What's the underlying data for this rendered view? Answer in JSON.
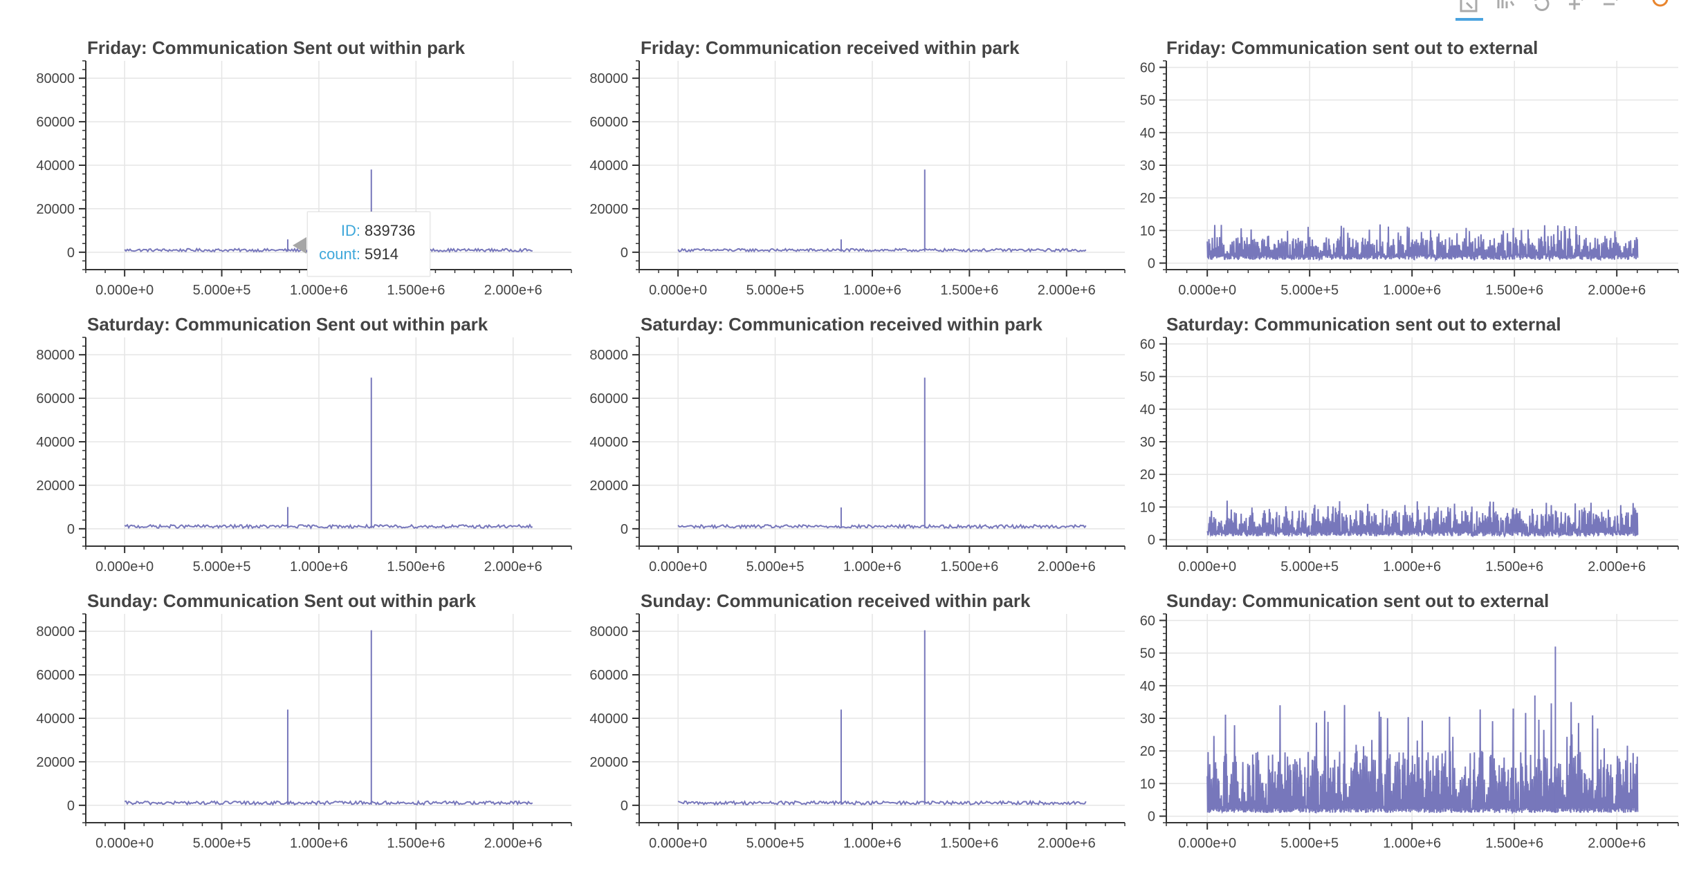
{
  "toolbar": {
    "tools": [
      {
        "icon": "box-zoom-icon",
        "active": true
      },
      {
        "icon": "wheel-zoom-icon",
        "active": false
      },
      {
        "icon": "reset-icon",
        "active": false
      },
      {
        "icon": "zoom-in-icon",
        "active": false
      },
      {
        "icon": "zoom-out-icon",
        "active": false
      },
      {
        "icon": "bokeh-logo-icon",
        "active": false
      }
    ],
    "accent_color": "#4aa3df"
  },
  "line_color": "#7777bb",
  "tooltip": {
    "id_key": "ID:",
    "id_value": "839736",
    "count_key": "count:",
    "count_value": "5914"
  },
  "chart_data": [
    {
      "type": "line",
      "title": "Friday: Communication Sent out within park",
      "xlabel": "",
      "ylabel": "",
      "xlim": [
        -200000,
        2300000
      ],
      "ylim": [
        -8000,
        88000
      ],
      "x_ticks": [
        "0.000e+0",
        "5.000e+5",
        "1.000e+6",
        "1.500e+6",
        "2.000e+6"
      ],
      "y_ticks": [
        "0",
        "20000",
        "40000",
        "60000",
        "80000"
      ],
      "series": [
        {
          "x_range": [
            0,
            2100000
          ],
          "baseline": [
            300,
            1600
          ],
          "spikes": [
            {
              "x": 839736,
              "y": 5914
            },
            {
              "x": 1270000,
              "y": 38000
            }
          ]
        }
      ]
    },
    {
      "type": "line",
      "title": "Friday: Communication received within park",
      "xlabel": "",
      "ylabel": "",
      "xlim": [
        -200000,
        2300000
      ],
      "ylim": [
        -8000,
        88000
      ],
      "x_ticks": [
        "0.000e+0",
        "5.000e+5",
        "1.000e+6",
        "1.500e+6",
        "2.000e+6"
      ],
      "y_ticks": [
        "0",
        "20000",
        "40000",
        "60000",
        "80000"
      ],
      "series": [
        {
          "x_range": [
            0,
            2100000
          ],
          "baseline": [
            300,
            1600
          ],
          "spikes": [
            {
              "x": 839736,
              "y": 5900
            },
            {
              "x": 1270000,
              "y": 38000
            }
          ]
        }
      ]
    },
    {
      "type": "line",
      "title": "Friday: Communication sent out to external",
      "xlabel": "",
      "ylabel": "",
      "xlim": [
        -200000,
        2300000
      ],
      "ylim": [
        -2,
        62
      ],
      "x_ticks": [
        "0.000e+0",
        "5.000e+5",
        "1.000e+6",
        "1.500e+6",
        "2.000e+6"
      ],
      "y_ticks": [
        "0",
        "10",
        "20",
        "30",
        "40",
        "50",
        "60"
      ],
      "series": [
        {
          "x_range": [
            0,
            2100000
          ],
          "baseline": [
            1,
            8
          ],
          "max": 12
        }
      ]
    },
    {
      "type": "line",
      "title": "Saturday: Communication Sent out within park",
      "xlabel": "",
      "ylabel": "",
      "xlim": [
        -200000,
        2300000
      ],
      "ylim": [
        -8000,
        88000
      ],
      "x_ticks": [
        "0.000e+0",
        "5.000e+5",
        "1.000e+6",
        "1.500e+6",
        "2.000e+6"
      ],
      "y_ticks": [
        "0",
        "20000",
        "40000",
        "60000",
        "80000"
      ],
      "series": [
        {
          "x_range": [
            0,
            2100000
          ],
          "baseline": [
            300,
            1800
          ],
          "spikes": [
            {
              "x": 839736,
              "y": 10000
            },
            {
              "x": 1270000,
              "y": 69500
            }
          ]
        }
      ]
    },
    {
      "type": "line",
      "title": "Saturday: Communication received within park",
      "xlabel": "",
      "ylabel": "",
      "xlim": [
        -200000,
        2300000
      ],
      "ylim": [
        -8000,
        88000
      ],
      "x_ticks": [
        "0.000e+0",
        "5.000e+5",
        "1.000e+6",
        "1.500e+6",
        "2.000e+6"
      ],
      "y_ticks": [
        "0",
        "20000",
        "40000",
        "60000",
        "80000"
      ],
      "series": [
        {
          "x_range": [
            0,
            2100000
          ],
          "baseline": [
            300,
            1800
          ],
          "spikes": [
            {
              "x": 839736,
              "y": 9800
            },
            {
              "x": 1270000,
              "y": 69500
            }
          ]
        }
      ]
    },
    {
      "type": "line",
      "title": "Saturday: Communication sent out to external",
      "xlabel": "",
      "ylabel": "",
      "xlim": [
        -200000,
        2300000
      ],
      "ylim": [
        -2,
        62
      ],
      "x_ticks": [
        "0.000e+0",
        "5.000e+5",
        "1.000e+6",
        "1.500e+6",
        "2.000e+6"
      ],
      "y_ticks": [
        "0",
        "10",
        "20",
        "30",
        "40",
        "50",
        "60"
      ],
      "series": [
        {
          "x_range": [
            0,
            2100000
          ],
          "baseline": [
            1,
            9
          ],
          "max": 12
        }
      ]
    },
    {
      "type": "line",
      "title": "Sunday: Communication Sent out within park",
      "xlabel": "",
      "ylabel": "",
      "xlim": [
        -200000,
        2300000
      ],
      "ylim": [
        -8000,
        88000
      ],
      "x_ticks": [
        "0.000e+0",
        "5.000e+5",
        "1.000e+6",
        "1.500e+6",
        "2.000e+6"
      ],
      "y_ticks": [
        "0",
        "20000",
        "40000",
        "60000",
        "80000"
      ],
      "series": [
        {
          "x_range": [
            0,
            2100000
          ],
          "baseline": [
            300,
            1900
          ],
          "spikes": [
            {
              "x": 839736,
              "y": 44000
            },
            {
              "x": 1270000,
              "y": 80500
            }
          ]
        }
      ]
    },
    {
      "type": "line",
      "title": "Sunday: Communication received within park",
      "xlabel": "",
      "ylabel": "",
      "xlim": [
        -200000,
        2300000
      ],
      "ylim": [
        -8000,
        88000
      ],
      "x_ticks": [
        "0.000e+0",
        "5.000e+5",
        "1.000e+6",
        "1.500e+6",
        "2.000e+6"
      ],
      "y_ticks": [
        "0",
        "20000",
        "40000",
        "60000",
        "80000"
      ],
      "series": [
        {
          "x_range": [
            0,
            2100000
          ],
          "baseline": [
            300,
            1900
          ],
          "spikes": [
            {
              "x": 839736,
              "y": 44000
            },
            {
              "x": 1270000,
              "y": 80500
            }
          ]
        }
      ]
    },
    {
      "type": "line",
      "title": "Sunday: Communication sent out to external",
      "xlabel": "",
      "ylabel": "",
      "xlim": [
        -200000,
        2300000
      ],
      "ylim": [
        -2,
        62
      ],
      "x_ticks": [
        "0.000e+0",
        "5.000e+5",
        "1.000e+6",
        "1.500e+6",
        "2.000e+6"
      ],
      "y_ticks": [
        "0",
        "10",
        "20",
        "30",
        "40",
        "50",
        "60"
      ],
      "series": [
        {
          "x_range": [
            0,
            2100000
          ],
          "baseline": [
            1,
            20
          ],
          "max": 35,
          "spikes": [
            {
              "x": 1700000,
              "y": 52
            },
            {
              "x": 1600000,
              "y": 37
            }
          ]
        }
      ]
    }
  ]
}
